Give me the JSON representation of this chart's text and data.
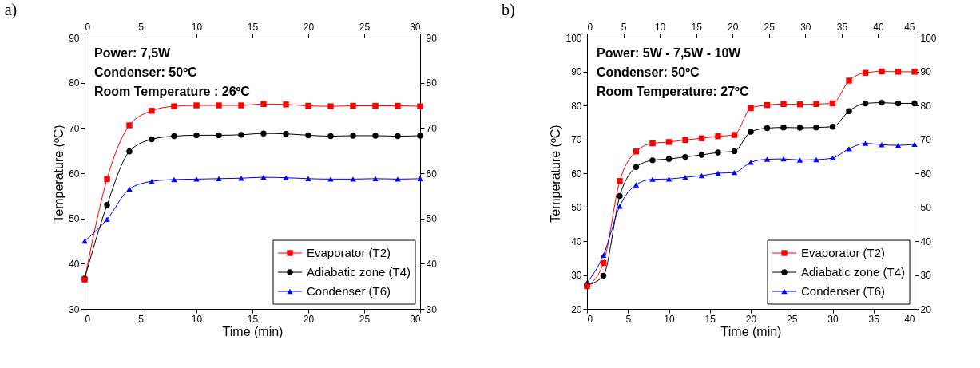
{
  "chart_data": [
    {
      "type": "line",
      "title": "a)",
      "xlabel": "Time (min)",
      "ylabel": "Temperature (ºC)",
      "annotations": [
        "Power: 7,5W",
        "Condenser: 50ºC",
        "Room Temperature : 26ºC"
      ],
      "x": [
        0,
        2,
        4,
        6,
        8,
        10,
        12,
        14,
        16,
        18,
        20,
        22,
        24,
        26,
        28,
        30
      ],
      "series": [
        {
          "name": "Evaporator (T2)",
          "color": "#ff0000",
          "marker": "square",
          "values": [
            36.5,
            58.7,
            70.6,
            73.8,
            74.8,
            75.0,
            75.0,
            75.0,
            75.3,
            75.2,
            74.9,
            74.8,
            74.9,
            74.9,
            74.9,
            74.8
          ]
        },
        {
          "name": "Adiabatic zone (T4)",
          "color": "#000000",
          "marker": "circle",
          "values": [
            36.7,
            53.0,
            64.8,
            67.5,
            68.2,
            68.4,
            68.4,
            68.5,
            68.8,
            68.7,
            68.4,
            68.2,
            68.3,
            68.3,
            68.2,
            68.3
          ]
        },
        {
          "name": "Condenser (T6)",
          "color": "#0000ff",
          "marker": "triangle",
          "values": [
            45.0,
            49.8,
            56.5,
            58.2,
            58.6,
            58.7,
            58.8,
            58.9,
            59.1,
            59.0,
            58.8,
            58.7,
            58.7,
            58.8,
            58.7,
            58.8
          ]
        }
      ],
      "xlim": [
        0,
        30
      ],
      "xticks": [
        0,
        5,
        10,
        15,
        20,
        25,
        30
      ],
      "x2lim": [
        0,
        30
      ],
      "x2ticks": [
        0,
        5,
        10,
        15,
        20,
        25,
        30
      ],
      "ylim": [
        30,
        90
      ],
      "yticks": [
        30,
        40,
        50,
        60,
        70,
        80,
        90
      ],
      "y2lim": [
        30,
        90
      ],
      "y2ticks": [
        30,
        40,
        50,
        60,
        70,
        80,
        90
      ],
      "grid": false,
      "legend": "bottom right",
      "line_style": "solid"
    },
    {
      "type": "line",
      "title": "b)",
      "xlabel": "Time (min)",
      "ylabel": "Temperature (ºC)",
      "annotations": [
        "Power: 5W - 7,5W - 10W",
        "Condenser: 50ºC",
        "Room Temperature: 27ºC"
      ],
      "x": [
        0,
        2,
        4,
        6,
        8,
        10,
        12,
        14,
        16,
        18,
        20,
        22,
        24,
        26,
        28,
        30,
        32,
        34,
        36,
        38,
        40
      ],
      "series": [
        {
          "name": "Evaporator (T2)",
          "color": "#ff0000",
          "marker": "square",
          "values": [
            26.7,
            33.5,
            57.7,
            66.4,
            68.8,
            69.2,
            69.8,
            70.3,
            70.9,
            71.3,
            79.2,
            80.1,
            80.4,
            80.3,
            80.4,
            80.6,
            87.3,
            89.6,
            90.0,
            89.9,
            89.9
          ]
        },
        {
          "name": "Adiabatic zone (T4)",
          "color": "#000000",
          "marker": "circle",
          "values": [
            27.0,
            29.8,
            53.3,
            61.8,
            63.8,
            64.2,
            64.8,
            65.4,
            66.1,
            66.5,
            72.2,
            73.3,
            73.5,
            73.4,
            73.5,
            73.7,
            78.3,
            80.6,
            80.8,
            80.6,
            80.6
          ]
        },
        {
          "name": "Condenser (T6)",
          "color": "#0000ff",
          "marker": "triangle",
          "values": [
            27.7,
            35.8,
            50.3,
            56.6,
            58.2,
            58.3,
            58.8,
            59.3,
            60.0,
            60.2,
            63.2,
            64.1,
            64.2,
            63.9,
            64.0,
            64.5,
            67.2,
            68.8,
            68.4,
            68.2,
            68.5
          ]
        }
      ],
      "xlim": [
        0,
        40
      ],
      "xticks": [
        0,
        5,
        10,
        15,
        20,
        25,
        30,
        35,
        40
      ],
      "x2lim": [
        0,
        45
      ],
      "x2ticks": [
        0,
        5,
        10,
        15,
        20,
        25,
        30,
        35,
        40,
        45
      ],
      "ylim": [
        20,
        100
      ],
      "yticks": [
        20,
        30,
        40,
        50,
        60,
        70,
        80,
        90,
        100
      ],
      "y2lim": [
        20,
        100
      ],
      "y2ticks": [
        20,
        30,
        40,
        50,
        60,
        70,
        80,
        90,
        100
      ],
      "grid": false,
      "legend": "bottom right",
      "line_style": "solid"
    }
  ]
}
